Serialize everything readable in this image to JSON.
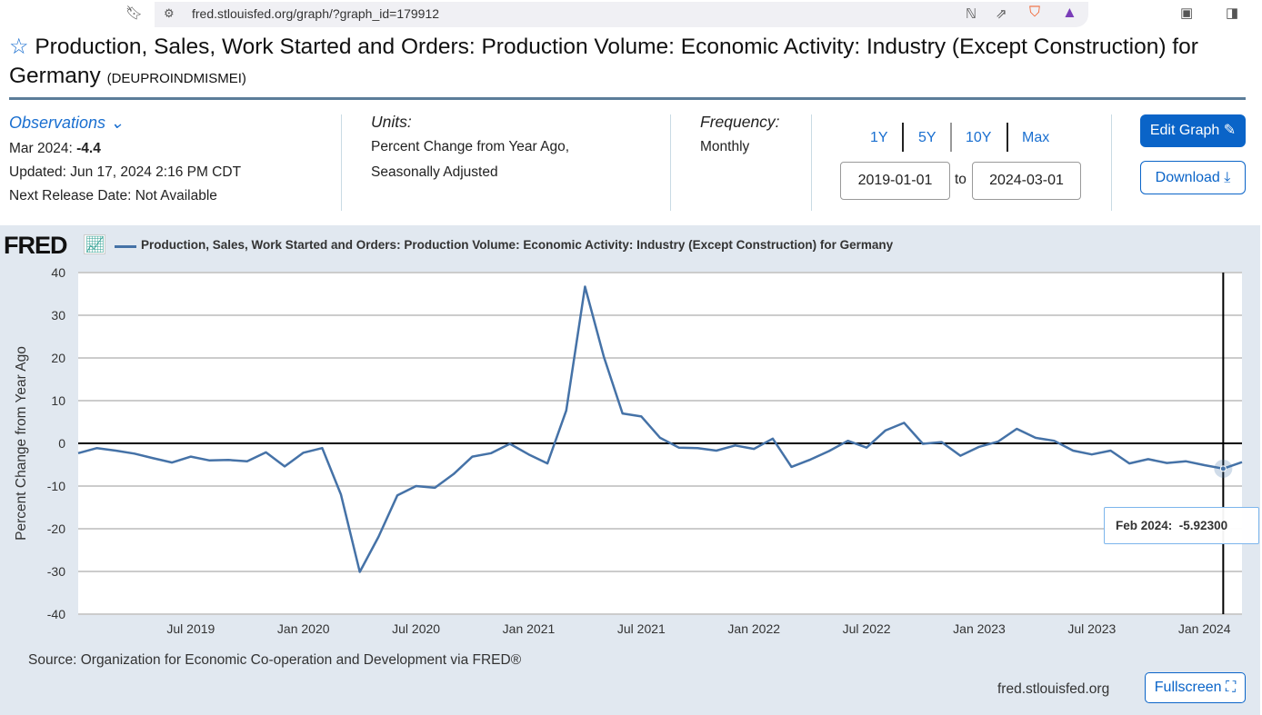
{
  "browser": {
    "url": "fred.stlouisfed.org/graph/?graph_id=179912"
  },
  "header": {
    "title": "Production, Sales, Work Started and Orders: Production Volume: Economic Activity: Industry (Except Construction) for Germany",
    "series_id": "(DEUPROINDMISMEI)"
  },
  "observations": {
    "label": "Observations",
    "latest_label": "Mar 2024:",
    "latest_value": "-4.4",
    "updated": "Updated: Jun 17, 2024 2:16 PM CDT",
    "next_release": "Next Release Date: Not Available"
  },
  "units": {
    "label": "Units:",
    "line1": "Percent Change from Year Ago,",
    "line2": "Seasonally Adjusted"
  },
  "frequency": {
    "label": "Frequency:",
    "value": "Monthly"
  },
  "range": {
    "buttons": [
      "1Y",
      "5Y",
      "10Y",
      "Max"
    ],
    "start": "2019-01-01",
    "to": "to",
    "end": "2024-03-01"
  },
  "actions": {
    "edit": "Edit Graph",
    "download": "Download",
    "fullscreen": "Fullscreen"
  },
  "footer": {
    "source": "Source: Organization for Economic Co-operation and Development via FRED®",
    "site": "fred.stlouisfed.org"
  },
  "logo": "FRED",
  "colors": {
    "series": "#4572a7",
    "accent": "#0a64c8"
  },
  "chart_data": {
    "type": "line",
    "title": "Production, Sales, Work Started and Orders: Production Volume: Economic Activity: Industry (Except Construction) for Germany",
    "ylabel": "Percent Change from Year Ago",
    "ylim": [
      -40,
      40
    ],
    "yticks": [
      40,
      30,
      20,
      10,
      0,
      -10,
      -20,
      -30,
      -40
    ],
    "x_start": "2019-01",
    "x_end": "2024-03",
    "xtick_labels": [
      {
        "label": "Jul 2019",
        "month": 6
      },
      {
        "label": "Jan 2020",
        "month": 12
      },
      {
        "label": "Jul 2020",
        "month": 18
      },
      {
        "label": "Jan 2021",
        "month": 24
      },
      {
        "label": "Jul 2021",
        "month": 30
      },
      {
        "label": "Jan 2022",
        "month": 36
      },
      {
        "label": "Jul 2022",
        "month": 42
      },
      {
        "label": "Jan 2023",
        "month": 48
      },
      {
        "label": "Jul 2023",
        "month": 54
      },
      {
        "label": "Jan 2024",
        "month": 60
      }
    ],
    "values": [
      -2.3,
      -1.1,
      -1.7,
      -2.4,
      -3.5,
      -4.5,
      -3.1,
      -4.0,
      -3.9,
      -4.2,
      -2.1,
      -5.4,
      -2.2,
      -1.1,
      -12.0,
      -30.1,
      -21.9,
      -12.2,
      -10.0,
      -10.4,
      -7.2,
      -3.1,
      -2.3,
      -0.1,
      -2.6,
      -4.7,
      7.7,
      36.7,
      20.3,
      7.0,
      6.3,
      1.3,
      -1.0,
      -1.1,
      -1.7,
      -0.5,
      -1.3,
      1.1,
      -5.5,
      -3.8,
      -1.8,
      0.6,
      -1.0,
      3.0,
      4.8,
      -0.1,
      0.3,
      -2.9,
      -0.8,
      0.4,
      3.4,
      1.3,
      0.6,
      -1.7,
      -2.6,
      -1.7,
      -4.7,
      -3.7,
      -4.6,
      -4.2,
      -5.1,
      -5.923,
      -4.4
    ],
    "tooltip": {
      "label": "Feb 2024:",
      "value": "-5.92300",
      "month": 61
    },
    "grid": true,
    "legend": "top-left"
  }
}
